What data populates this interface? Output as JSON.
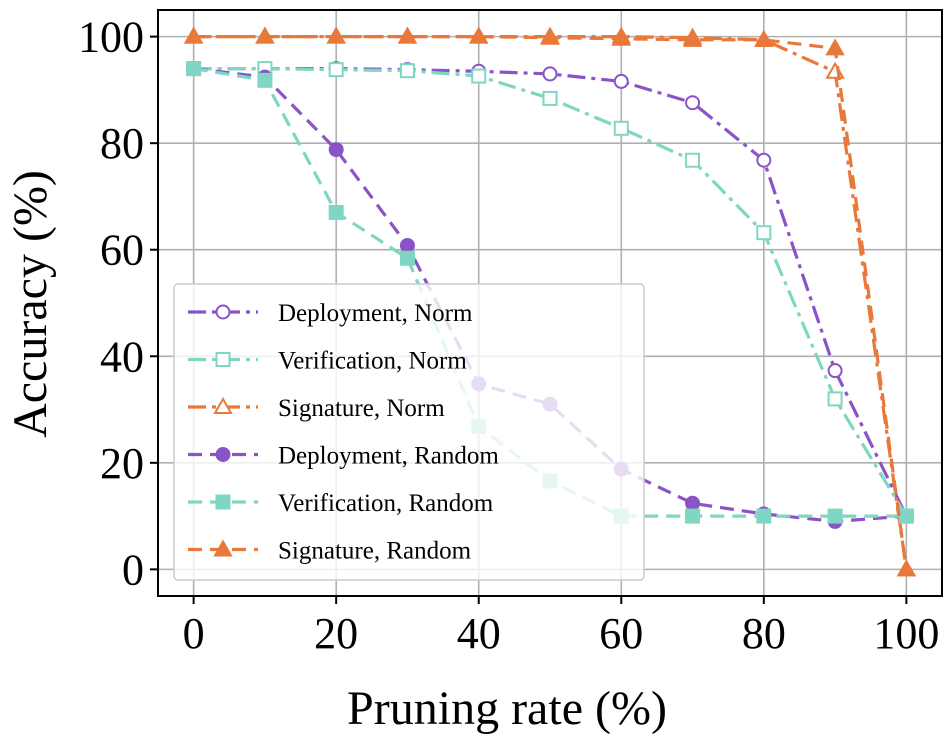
{
  "chart_data": {
    "type": "line",
    "title": "",
    "xlabel": "Pruning rate (%)",
    "ylabel": "Accuracy (%)",
    "xlim": [
      -5,
      105
    ],
    "ylim": [
      -5,
      105
    ],
    "grid": true,
    "legend_position": "left-middle",
    "x_ticks": [
      {
        "value": 0,
        "label": "0"
      },
      {
        "value": 20,
        "label": "20"
      },
      {
        "value": 40,
        "label": "40"
      },
      {
        "value": 60,
        "label": "60"
      },
      {
        "value": 80,
        "label": "80"
      },
      {
        "value": 100,
        "label": "100"
      }
    ],
    "y_ticks": [
      {
        "value": 0,
        "label": "0"
      },
      {
        "value": 20,
        "label": "20"
      },
      {
        "value": 40,
        "label": "40"
      },
      {
        "value": 60,
        "label": "60"
      },
      {
        "value": 80,
        "label": "80"
      },
      {
        "value": 100,
        "label": "100"
      }
    ],
    "x": [
      0,
      10,
      20,
      30,
      40,
      50,
      60,
      70,
      80,
      90,
      100
    ],
    "series": [
      {
        "name": "Deployment, Norm",
        "color": "#8a53c8",
        "dash": "dashdot",
        "marker": "circle",
        "filled": false,
        "values": [
          94,
          94,
          94,
          93.8,
          93.5,
          93,
          91.6,
          87.6,
          76.8,
          37.3,
          10
        ]
      },
      {
        "name": "Verification, Norm",
        "color": "#7fd6c2",
        "dash": "dashdot",
        "marker": "square",
        "filled": false,
        "values": [
          94,
          94,
          93.8,
          93.6,
          92.6,
          88.4,
          82.8,
          76.8,
          63.2,
          32,
          10
        ]
      },
      {
        "name": "Signature, Norm",
        "color": "#e8793a",
        "dash": "dashdot",
        "marker": "triangle",
        "filled": false,
        "values": [
          100,
          100,
          100,
          100,
          100,
          100,
          100,
          99.8,
          99.4,
          93.4,
          0
        ]
      },
      {
        "name": "Deployment, Random",
        "color": "#8a53c8",
        "dash": "dashed",
        "marker": "circle",
        "filled": true,
        "values": [
          94,
          92.4,
          78.8,
          60.8,
          34.8,
          31,
          18.8,
          12.4,
          10.4,
          9,
          10
        ]
      },
      {
        "name": "Verification, Random",
        "color": "#7fd6c2",
        "dash": "dashed",
        "marker": "square",
        "filled": true,
        "values": [
          94,
          91.8,
          67,
          58.4,
          26.8,
          16.6,
          10,
          10,
          10,
          10,
          10
        ]
      },
      {
        "name": "Signature, Random",
        "color": "#e8793a",
        "dash": "dashed",
        "marker": "triangle",
        "filled": true,
        "values": [
          100,
          100,
          100,
          100,
          100,
          99.8,
          99.6,
          99.4,
          99.4,
          97.8,
          0
        ]
      }
    ]
  }
}
